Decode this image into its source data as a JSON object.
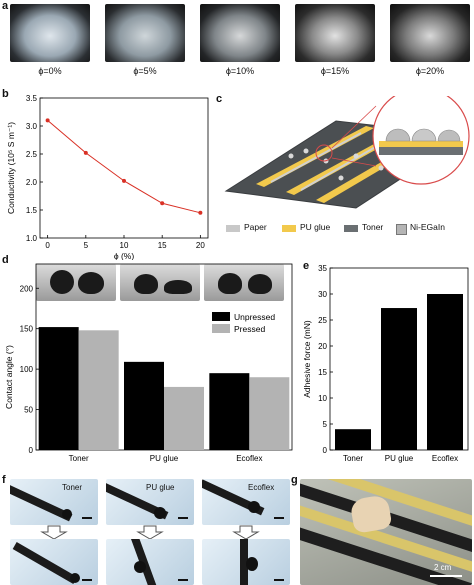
{
  "panel_labels": {
    "a": "a",
    "b": "b",
    "c": "c",
    "d": "d",
    "e": "e",
    "f": "f",
    "g": "g"
  },
  "panel_a": {
    "captions": [
      "ϕ=0%",
      "ϕ=5%",
      "ϕ=10%",
      "ϕ=15%",
      "ϕ=20%"
    ]
  },
  "panel_c": {
    "legend": [
      "Paper",
      "PU glue",
      "Toner",
      "Ni-EGaIn"
    ],
    "legend_colors": [
      "#c8c8c8",
      "#f2c94c",
      "#6a6f72",
      "#b5b5b5"
    ]
  },
  "panel_d": {
    "legend": [
      "Unpressed",
      "Pressed"
    ]
  },
  "panel_f": {
    "labels": [
      "Toner",
      "PU glue",
      "Ecoflex"
    ]
  },
  "panel_g": {
    "scale": "2 cm"
  },
  "chart_data": [
    {
      "panel": "b",
      "type": "line",
      "x": [
        0,
        5,
        10,
        15,
        20
      ],
      "values": [
        3.1,
        2.52,
        2.02,
        1.62,
        1.45
      ],
      "xlabel": "ϕ (%)",
      "ylabel": "Conductivity (10⁵ S m⁻¹)",
      "xlim": [
        -1,
        21
      ],
      "ylim": [
        1.0,
        3.5
      ],
      "xticks": [
        "0",
        "5",
        "10",
        "15",
        "20"
      ],
      "yticks": [
        "1.0",
        "1.5",
        "2.0",
        "2.5",
        "3.0",
        "3.5"
      ],
      "color": "#d93025"
    },
    {
      "panel": "d",
      "type": "bar",
      "categories": [
        "Toner",
        "PU glue",
        "Ecoflex"
      ],
      "series": [
        {
          "name": "Unpressed",
          "values": [
            152,
            109,
            95
          ],
          "color": "#000000"
        },
        {
          "name": "Pressed",
          "values": [
            148,
            78,
            90
          ],
          "color": "#b3b3b3"
        }
      ],
      "xlabel": "",
      "ylabel": "Contact angle (°)",
      "ylim": [
        0,
        230
      ],
      "yticks": [
        "0",
        "50",
        "100",
        "150",
        "200"
      ],
      "legend_position": "top-right"
    },
    {
      "panel": "e",
      "type": "bar",
      "categories": [
        "Toner",
        "PU glue",
        "Ecoflex"
      ],
      "values": [
        4,
        27.3,
        30
      ],
      "xlabel": "",
      "ylabel": "Adhesive force (mN)",
      "ylim": [
        0,
        35
      ],
      "yticks": [
        "0",
        "5",
        "10",
        "15",
        "20",
        "25",
        "30",
        "35"
      ],
      "color": "#000000"
    }
  ]
}
